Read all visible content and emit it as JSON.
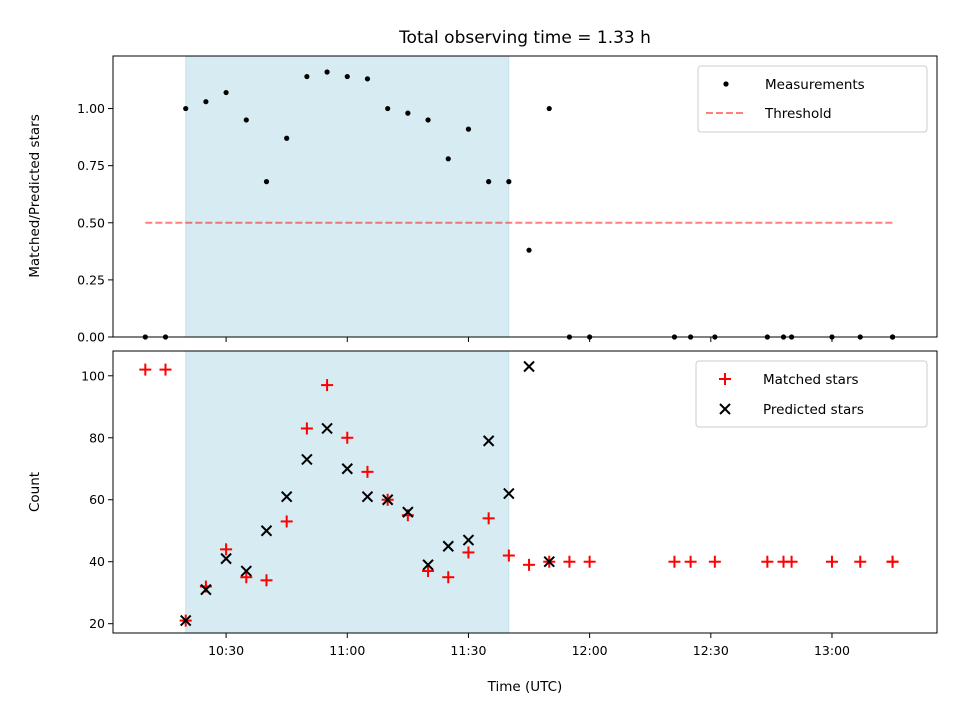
{
  "title": "Total observing time = 1.33 h",
  "chart_data": [
    {
      "type": "scatter",
      "ylabel": "Matched/Predicted stars",
      "ylim": [
        0,
        1.23
      ],
      "yticks": [
        {
          "value": 0,
          "label": "0.00"
        },
        {
          "value": 0.25,
          "label": "0.25"
        },
        {
          "value": 0.5,
          "label": "0.50"
        },
        {
          "value": 0.75,
          "label": "0.75"
        },
        {
          "value": 1.0,
          "label": "1.00"
        }
      ],
      "legend": {
        "placement": "upper-right",
        "entries": [
          "Measurements",
          "Threshold"
        ]
      },
      "shaded_span": {
        "x": [
          "10:20",
          "11:40"
        ],
        "color": "#add8e6"
      },
      "threshold": {
        "name": "Threshold",
        "value": 0.5,
        "x": [
          "10:10",
          "13:15"
        ],
        "color": "#ff0000"
      },
      "series": [
        {
          "name": "Measurements",
          "color": "#000000",
          "points": [
            [
              "10:10",
              0.0
            ],
            [
              "10:15",
              0.0
            ],
            [
              "10:20",
              1.0
            ],
            [
              "10:25",
              1.03
            ],
            [
              "10:30",
              1.07
            ],
            [
              "10:35",
              0.95
            ],
            [
              "10:40",
              0.68
            ],
            [
              "10:45",
              0.87
            ],
            [
              "10:50",
              1.14
            ],
            [
              "10:55",
              1.16
            ],
            [
              "11:00",
              1.14
            ],
            [
              "11:05",
              1.13
            ],
            [
              "11:10",
              1.0
            ],
            [
              "11:15",
              0.98
            ],
            [
              "11:20",
              0.95
            ],
            [
              "11:25",
              0.78
            ],
            [
              "11:30",
              0.91
            ],
            [
              "11:35",
              0.68
            ],
            [
              "11:40",
              0.68
            ],
            [
              "11:45",
              0.38
            ],
            [
              "11:50",
              1.0
            ],
            [
              "11:55",
              0.0
            ],
            [
              "12:00",
              0.0
            ],
            [
              "12:21",
              0.0
            ],
            [
              "12:25",
              0.0
            ],
            [
              "12:31",
              0.0
            ],
            [
              "12:44",
              0.0
            ],
            [
              "12:48",
              0.0
            ],
            [
              "12:50",
              0.0
            ],
            [
              "13:00",
              0.0
            ],
            [
              "13:07",
              0.0
            ],
            [
              "13:15",
              0.0
            ],
            [
              "13:15",
              0.0
            ]
          ]
        }
      ]
    },
    {
      "type": "scatter",
      "xlabel": "Time (UTC)",
      "ylabel": "Count",
      "xlim": [
        "10:02",
        "13:26"
      ],
      "ylim": [
        17,
        108
      ],
      "xticks": [
        "10:30",
        "11:00",
        "11:30",
        "12:00",
        "12:30",
        "13:00"
      ],
      "yticks": [
        20,
        40,
        60,
        80,
        100
      ],
      "legend": {
        "placement": "upper-right",
        "entries": [
          "Matched stars",
          "Predicted stars"
        ]
      },
      "shaded_span": {
        "x": [
          "10:20",
          "11:40"
        ],
        "color": "#add8e6"
      },
      "series": [
        {
          "name": "Matched stars",
          "marker": "plus",
          "color": "#ff0000",
          "points": [
            [
              "10:10",
              102
            ],
            [
              "10:15",
              102
            ],
            [
              "10:20",
              21
            ],
            [
              "10:25",
              32
            ],
            [
              "10:30",
              44
            ],
            [
              "10:35",
              35
            ],
            [
              "10:40",
              34
            ],
            [
              "10:45",
              53
            ],
            [
              "10:50",
              83
            ],
            [
              "10:55",
              97
            ],
            [
              "11:00",
              80
            ],
            [
              "11:05",
              69
            ],
            [
              "11:10",
              60
            ],
            [
              "11:15",
              55
            ],
            [
              "11:20",
              37
            ],
            [
              "11:25",
              35
            ],
            [
              "11:30",
              43
            ],
            [
              "11:35",
              54
            ],
            [
              "11:40",
              42
            ],
            [
              "11:45",
              39
            ],
            [
              "11:50",
              40
            ],
            [
              "11:55",
              40
            ],
            [
              "12:00",
              40
            ],
            [
              "12:21",
              40
            ],
            [
              "12:25",
              40
            ],
            [
              "12:31",
              40
            ],
            [
              "12:44",
              40
            ],
            [
              "12:48",
              40
            ],
            [
              "12:50",
              40
            ],
            [
              "13:00",
              40
            ],
            [
              "13:07",
              40
            ],
            [
              "13:15",
              40
            ],
            [
              "13:15",
              40
            ]
          ]
        },
        {
          "name": "Predicted stars",
          "marker": "x",
          "color": "#000000",
          "points": [
            [
              "10:20",
              21
            ],
            [
              "10:25",
              31
            ],
            [
              "10:30",
              41
            ],
            [
              "10:35",
              37
            ],
            [
              "10:40",
              50
            ],
            [
              "10:45",
              61
            ],
            [
              "10:50",
              73
            ],
            [
              "10:55",
              83
            ],
            [
              "11:00",
              70
            ],
            [
              "11:05",
              61
            ],
            [
              "11:10",
              60
            ],
            [
              "11:15",
              56
            ],
            [
              "11:20",
              39
            ],
            [
              "11:25",
              45
            ],
            [
              "11:30",
              47
            ],
            [
              "11:35",
              79
            ],
            [
              "11:40",
              62
            ],
            [
              "11:45",
              103
            ],
            [
              "11:50",
              40
            ]
          ]
        }
      ]
    }
  ]
}
